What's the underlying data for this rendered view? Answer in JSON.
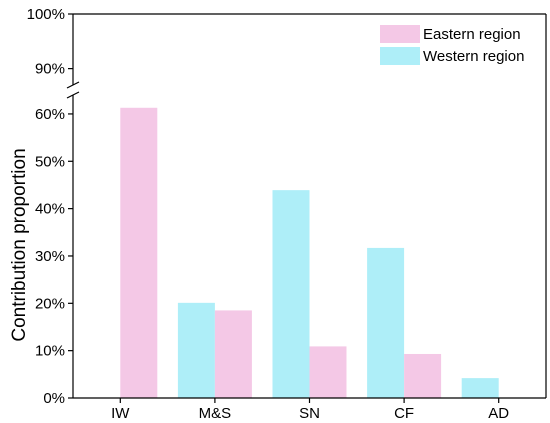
{
  "chart_data": {
    "type": "bar",
    "ylabel": "Contribution proportion",
    "xlabel": "",
    "categories": [
      "IW",
      "M&S",
      "SN",
      "CF",
      "AD"
    ],
    "series": [
      {
        "name": "Western region",
        "color": "#aeeef8",
        "values": [
          0,
          20.1,
          43.9,
          31.7,
          4.2
        ]
      },
      {
        "name": "Eastern region",
        "color": "#f4c8e6",
        "values": [
          61.3,
          18.5,
          10.9,
          9.3,
          0
        ]
      }
    ],
    "yaxis": {
      "lower_ticks": [
        0,
        10,
        20,
        30,
        40,
        50,
        60
      ],
      "upper_ticks": [
        90,
        100
      ],
      "tick_labels": {
        "0": "0%",
        "10": "10%",
        "20": "20%",
        "30": "30%",
        "40": "40%",
        "50": "50%",
        "60": "60%",
        "90": "90%",
        "100": "100%"
      },
      "lower_range": [
        0,
        64
      ],
      "upper_range": [
        87,
        100
      ],
      "broken": true
    },
    "legend": {
      "placement": "top-right",
      "entries": [
        {
          "label": "Eastern region",
          "color": "#f4c8e6"
        },
        {
          "label": "Western region",
          "color": "#aeeef8"
        }
      ]
    },
    "grid": false
  }
}
